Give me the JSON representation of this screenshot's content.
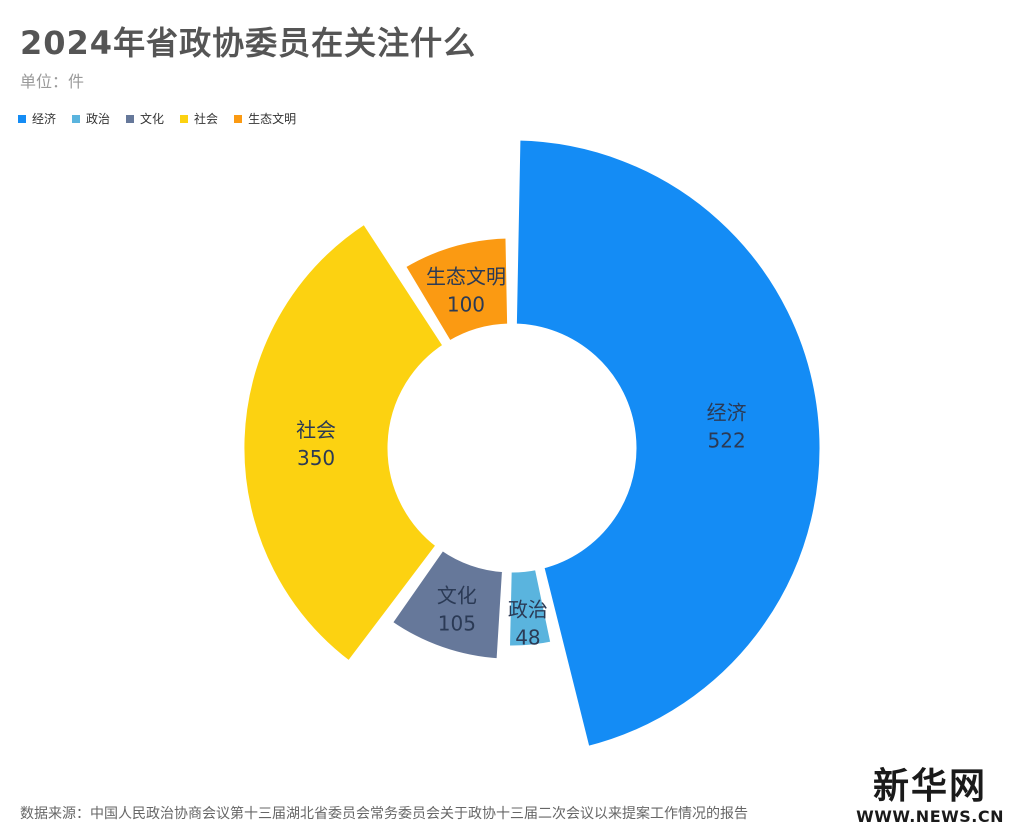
{
  "header": {
    "title": "2024年省政协委员在关注什么",
    "unit": "单位：件"
  },
  "chart_data": {
    "type": "pie",
    "variant": "donut",
    "legend_position": "top-left",
    "categories": [
      "经济",
      "政治",
      "文化",
      "社会",
      "生态文明"
    ],
    "values": [
      522,
      48,
      105,
      350,
      100
    ],
    "colors": [
      "#148cf5",
      "#5ab4de",
      "#66789a",
      "#fcd211",
      "#fb9a12"
    ],
    "label_colors": [
      "#2b3a55",
      "#2b3a55",
      "#2b3a55",
      "#2b3a55",
      "#2b3a55"
    ]
  },
  "footer": {
    "source": "数据来源：中国人民政治协商会议第十三届湖北省委员会常务委员会关于政协十三届二次会议以来提案工作情况的报告",
    "logo_cn": "新华网",
    "logo_en": "WWW.NEWS.CN"
  }
}
